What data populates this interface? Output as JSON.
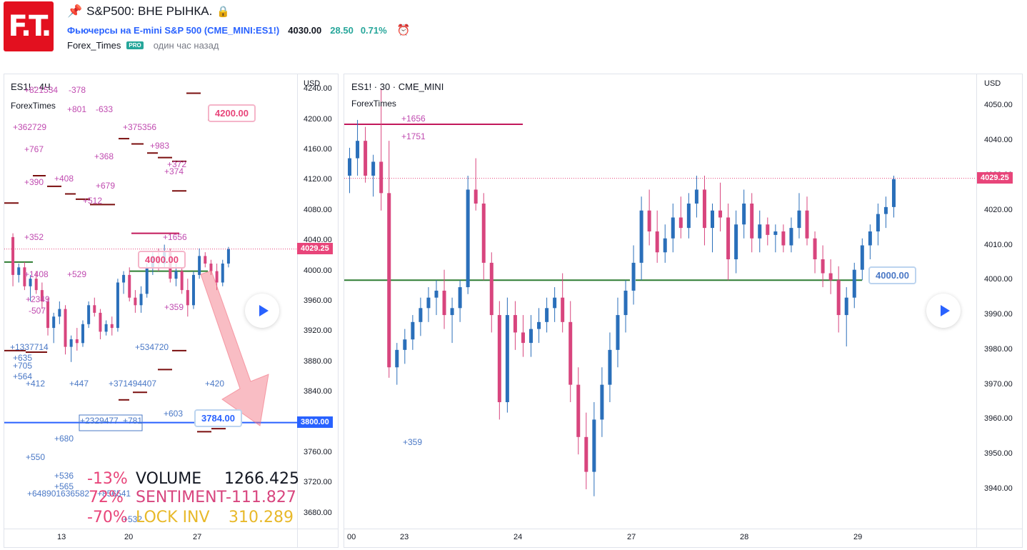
{
  "header": {
    "logo_text": "F.T.",
    "title": "S&P500: ВНЕ РЫНКА.",
    "symbol_name": "Фьючерсы на E-mini S&P 500",
    "symbol_code": "(CME_MINI:ES1!)",
    "price": "4030.00",
    "change": "28.50",
    "change_pct": "0.71%",
    "author": "Forex_Times",
    "badge": "PRO",
    "time_ago": "один час назад"
  },
  "left_panel": {
    "legend_title": "ES1! · 4Ч",
    "legend_source": "ForexTimes",
    "currency": "USD",
    "price_ticks": [
      "4240.00",
      "4200.00",
      "4160.00",
      "4120.00",
      "4080.00",
      "4040.00",
      "4000.00",
      "3960.00",
      "3920.00",
      "3880.00",
      "3840.00",
      "3800.00",
      "3760.00",
      "3720.00",
      "3680.00"
    ],
    "last_price_tag": "4029.25",
    "level_tag": "3800.00",
    "callout_high": "4200.00",
    "callout_mid": "4000.00",
    "callout_low": "3784.00",
    "time_ticks": [
      "13",
      "20",
      "27"
    ],
    "labels_purple": [
      "+821534",
      "-378",
      "-633",
      "+801",
      "+362729",
      "+375356",
      "+767",
      "+983",
      "+368",
      "+372",
      "+374",
      "+408",
      "+390",
      "+679",
      "+512",
      "+352",
      "+1656",
      "+529",
      "+1408",
      "+2349",
      "-507",
      "+359"
    ],
    "labels_blue": [
      "+1337714",
      "+635",
      "+705",
      "+564",
      "+412",
      "+447",
      "+371494407",
      "+534720",
      "+420",
      "+603",
      "+2329477",
      "+781",
      "+680",
      "+550",
      "+536",
      "+565",
      "+648901636582",
      "+856541",
      "+532"
    ],
    "stats": {
      "row1": {
        "pct": "-13%",
        "label": "VOLUME",
        "value": "1266.425"
      },
      "row2": {
        "pct": "72%",
        "label": "SENTIMENT",
        "value": "-111.827"
      },
      "row3": {
        "pct": "-70%",
        "label": "LOCK INV",
        "value": "310.289"
      }
    }
  },
  "right_panel": {
    "legend_title": "ES1! · 30 · CME_MINI",
    "legend_source": "ForexTimes",
    "currency": "USD",
    "price_ticks": [
      "4050.00",
      "4040.00",
      "4030.00",
      "4020.00",
      "4010.00",
      "4000.00",
      "3990.00",
      "3980.00",
      "3970.00",
      "3960.00",
      "3950.00",
      "3940.00"
    ],
    "last_price_tag": "4029.25",
    "callout": "4000.00",
    "labels": [
      "+1656",
      "+1751",
      "+359"
    ],
    "time_ticks": [
      "00",
      "23",
      "24",
      "27",
      "28",
      "29"
    ]
  },
  "colors": {
    "up": "#2a6fba",
    "down": "#d8457e",
    "last_price": "#e8457a",
    "support_line": "#2e7d32",
    "level_blue": "#2962ff",
    "arrow": "#f26d7d",
    "volume": "#131722",
    "sentiment": "#d8457e",
    "lockinv": "#e8b92a"
  },
  "chart_data": [
    {
      "type": "candlestick",
      "title": "ES1! · 4Ч",
      "ylim": [
        3660,
        4260
      ],
      "y_ticks": [
        4240,
        4200,
        4160,
        4120,
        4080,
        4040,
        4000,
        3960,
        3920,
        3880,
        3840,
        3800,
        3760,
        3720,
        3680
      ],
      "x_ticks": [
        "13",
        "20",
        "27"
      ],
      "last_price": 4029.25,
      "hlines": [
        3800,
        4000,
        4200
      ],
      "series": [
        {
          "values": [
            [
              4045,
              4050,
              3980,
              3995
            ],
            [
              3995,
              4010,
              3985,
              4005
            ],
            [
              4005,
              4012,
              3975,
              3980
            ],
            [
              3980,
              3995,
              3960,
              3990
            ],
            [
              3990,
              4000,
              3970,
              3975
            ],
            [
              3975,
              3985,
              3950,
              3960
            ],
            [
              3960,
              3965,
              3915,
              3925
            ],
            [
              3925,
              3945,
              3905,
              3940
            ],
            [
              3940,
              3960,
              3930,
              3950
            ],
            [
              3950,
              3955,
              3890,
              3900
            ],
            [
              3900,
              3915,
              3880,
              3910
            ],
            [
              3910,
              3925,
              3895,
              3905
            ],
            [
              3905,
              3935,
              3900,
              3930
            ],
            [
              3930,
              3960,
              3925,
              3955
            ],
            [
              3955,
              3965,
              3940,
              3945
            ],
            [
              3945,
              3950,
              3910,
              3920
            ],
            [
              3920,
              3935,
              3915,
              3930
            ],
            [
              3930,
              3940,
              3915,
              3925
            ],
            [
              3925,
              3990,
              3920,
              3985
            ],
            [
              3985,
              4000,
              3970,
              3995
            ],
            [
              3995,
              4005,
              3960,
              3965
            ],
            [
              3965,
              3975,
              3945,
              3955
            ],
            [
              3955,
              3980,
              3945,
              3970
            ],
            [
              3970,
              4010,
              3965,
              4005
            ],
            [
              4005,
              4025,
              3995,
              4020
            ],
            [
              4020,
              4030,
              4000,
              4010
            ],
            [
              4010,
              4035,
              4005,
              4025
            ],
            [
              4025,
              4030,
              3985,
              3990
            ],
            [
              3990,
              4010,
              3980,
              4000
            ],
            [
              4000,
              4005,
              3970,
              3975
            ],
            [
              3975,
              3990,
              3940,
              3955
            ],
            [
              3955,
              4000,
              3950,
              3995
            ],
            [
              3995,
              4030,
              3990,
              4020
            ],
            [
              4020,
              4025,
              4005,
              4010
            ],
            [
              4010,
              4015,
              3995,
              4000
            ],
            [
              4000,
              4010,
              3975,
              3985
            ],
            [
              3985,
              4015,
              3980,
              4010
            ],
            [
              4010,
              4032,
              4005,
              4029
            ]
          ]
        }
      ]
    },
    {
      "type": "candlestick",
      "title": "ES1! · 30 · CME_MINI",
      "ylim": [
        3932,
        4055
      ],
      "y_ticks": [
        4050,
        4040,
        4030,
        4020,
        4010,
        4000,
        3990,
        3980,
        3970,
        3960,
        3950,
        3940
      ],
      "x_ticks": [
        "00",
        "23",
        "24",
        "27",
        "28",
        "29"
      ],
      "last_price": 4029.25,
      "hlines": [
        4000
      ],
      "series": [
        {
          "values": [
            [
              4030,
              4038,
              4025,
              4035
            ],
            [
              4035,
              4046,
              4030,
              4040
            ],
            [
              4040,
              4044,
              4028,
              4030
            ],
            [
              4030,
              4036,
              4024,
              4034
            ],
            [
              4034,
              4055,
              4020,
              4025
            ],
            [
              4025,
              4040,
              3972,
              3975
            ],
            [
              3975,
              3982,
              3970,
              3980
            ],
            [
              3980,
              3986,
              3976,
              3983
            ],
            [
              3983,
              3990,
              3980,
              3988
            ],
            [
              3988,
              3995,
              3984,
              3992
            ],
            [
              3992,
              3998,
              3988,
              3995
            ],
            [
              3995,
              4000,
              3990,
              3997
            ],
            [
              3997,
              4003,
              3986,
              3990
            ],
            [
              3990,
              3995,
              3982,
              3992
            ],
            [
              3992,
              4000,
              3988,
              3998
            ],
            [
              3998,
              4030,
              3996,
              4026
            ],
            [
              4026,
              4035,
              4020,
              4022
            ],
            [
              4022,
              4025,
              4000,
              4005
            ],
            [
              4005,
              4008,
              3985,
              3990
            ],
            [
              3990,
              3994,
              3960,
              3965
            ],
            [
              3965,
              3995,
              3962,
              3990
            ],
            [
              3990,
              3994,
              3980,
              3985
            ],
            [
              3985,
              3990,
              3978,
              3982
            ],
            [
              3982,
              3990,
              3978,
              3986
            ],
            [
              3986,
              3992,
              3982,
              3988
            ],
            [
              3988,
              3995,
              3985,
              3992
            ],
            [
              3992,
              3998,
              3988,
              3995
            ],
            [
              3995,
              4002,
              3985,
              3988
            ],
            [
              3988,
              3994,
              3965,
              3970
            ],
            [
              3970,
              3975,
              3950,
              3955
            ],
            [
              3955,
              3962,
              3940,
              3945
            ],
            [
              3945,
              3965,
              3938,
              3960
            ],
            [
              3960,
              3975,
              3955,
              3970
            ],
            [
              3970,
              3985,
              3965,
              3980
            ],
            [
              3980,
              3995,
              3975,
              3990
            ],
            [
              3990,
              4000,
              3985,
              3997
            ],
            [
              3997,
              4010,
              3993,
              4005
            ],
            [
              4005,
              4024,
              4000,
              4020
            ],
            [
              4020,
              4026,
              4010,
              4014
            ],
            [
              4014,
              4020,
              4005,
              4008
            ],
            [
              4008,
              4016,
              4005,
              4012
            ],
            [
              4012,
              4022,
              4008,
              4018
            ],
            [
              4018,
              4024,
              4012,
              4015
            ],
            [
              4015,
              4025,
              4012,
              4022
            ],
            [
              4022,
              4030,
              4018,
              4026
            ],
            [
              4026,
              4030,
              4010,
              4015
            ],
            [
              4015,
              4022,
              4008,
              4020
            ],
            [
              4020,
              4028,
              4014,
              4018
            ],
            [
              4018,
              4022,
              4000,
              4006
            ],
            [
              4006,
              4020,
              4002,
              4016
            ],
            [
              4016,
              4026,
              4012,
              4022
            ],
            [
              4022,
              4025,
              4008,
              4012
            ],
            [
              4012,
              4020,
              4008,
              4016
            ],
            [
              4016,
              4018,
              4010,
              4013
            ],
            [
              4013,
              4016,
              4008,
              4014
            ],
            [
              4014,
              4016,
              4008,
              4010
            ],
            [
              4010,
              4018,
              4008,
              4015
            ],
            [
              4015,
              4025,
              4012,
              4020
            ],
            [
              4020,
              4024,
              4010,
              4012
            ],
            [
              4012,
              4014,
              4002,
              4006
            ],
            [
              4006,
              4010,
              3998,
              4002
            ],
            [
              4002,
              4006,
              3996,
              4000
            ],
            [
              4000,
              4004,
              3985,
              3990
            ],
            [
              3990,
              3998,
              3981,
              3995
            ],
            [
              3995,
              4005,
              3992,
              4003
            ],
            [
              4003,
              4012,
              4000,
              4010
            ],
            [
              4010,
              4016,
              4006,
              4014
            ],
            [
              4014,
              4022,
              4010,
              4019
            ],
            [
              4019,
              4024,
              4015,
              4021
            ],
            [
              4021,
              4030,
              4018,
              4029
            ]
          ]
        }
      ]
    }
  ]
}
